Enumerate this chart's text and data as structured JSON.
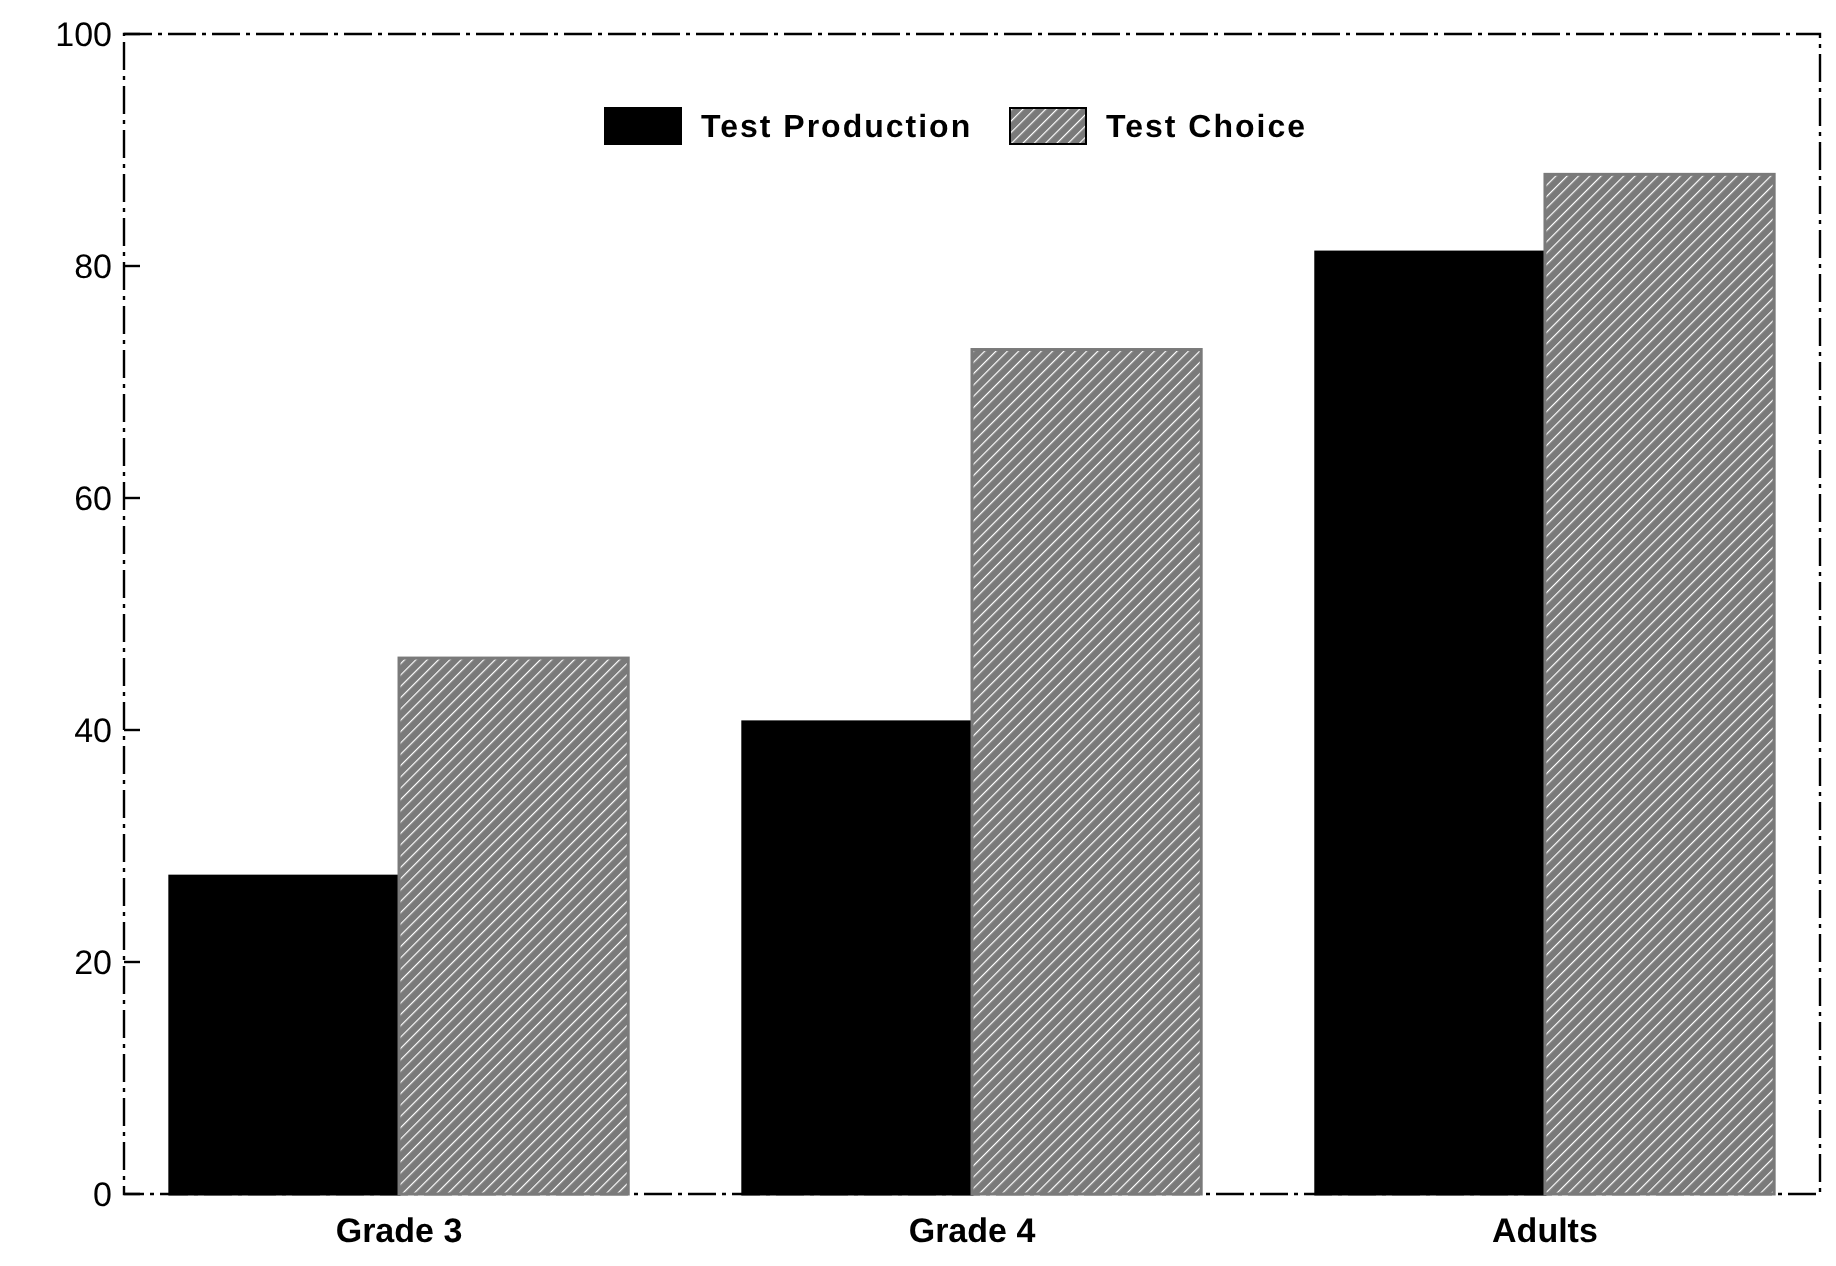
{
  "chart_data": {
    "type": "bar",
    "categories": [
      "Grade 3",
      "Grade 4",
      "Adults"
    ],
    "series": [
      {
        "name": "Test Production",
        "color": "#000000",
        "values": [
          27.4,
          40.7,
          81.2
        ]
      },
      {
        "name": "Test Choice",
        "color": "#7a7a7a",
        "values": [
          46.2,
          72.8,
          87.9
        ]
      }
    ],
    "ylim": [
      0,
      100
    ],
    "yticks": [
      0,
      20,
      40,
      60,
      80,
      100
    ],
    "legend": "top",
    "grid": false
  }
}
